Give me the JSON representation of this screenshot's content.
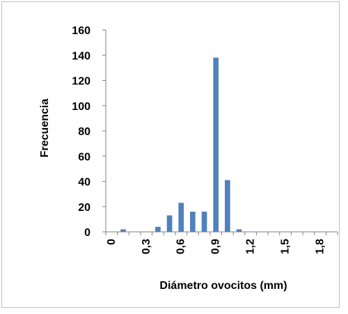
{
  "chart_data": {
    "type": "bar",
    "title": "",
    "xlabel": "Diámetro ovocitos (mm)",
    "ylabel": "Frecuencia",
    "ylim": [
      0,
      160
    ],
    "yticks": [
      "0",
      "20",
      "40",
      "60",
      "80",
      "100",
      "120",
      "140",
      "160"
    ],
    "x_tick_labels": [
      "0",
      "0,3",
      "0,6",
      "0,9",
      "1,2",
      "1,5",
      "1,8"
    ],
    "x_tick_every": 3,
    "categories": [
      "0",
      "0,1",
      "0,2",
      "0,3",
      "0,4",
      "0,5",
      "0,6",
      "0,7",
      "0,8",
      "0,9",
      "1",
      "1,1",
      "1,2",
      "1,3",
      "1,4",
      "1,5",
      "1,6",
      "1,7",
      "1,8",
      "1,9"
    ],
    "values": [
      0,
      2,
      0,
      0,
      4,
      13,
      23,
      16,
      16,
      138,
      41,
      2,
      0,
      0,
      0,
      0,
      0,
      0,
      0,
      0
    ],
    "bar_color": "#4f81bd",
    "grid": false,
    "legend": "none"
  }
}
